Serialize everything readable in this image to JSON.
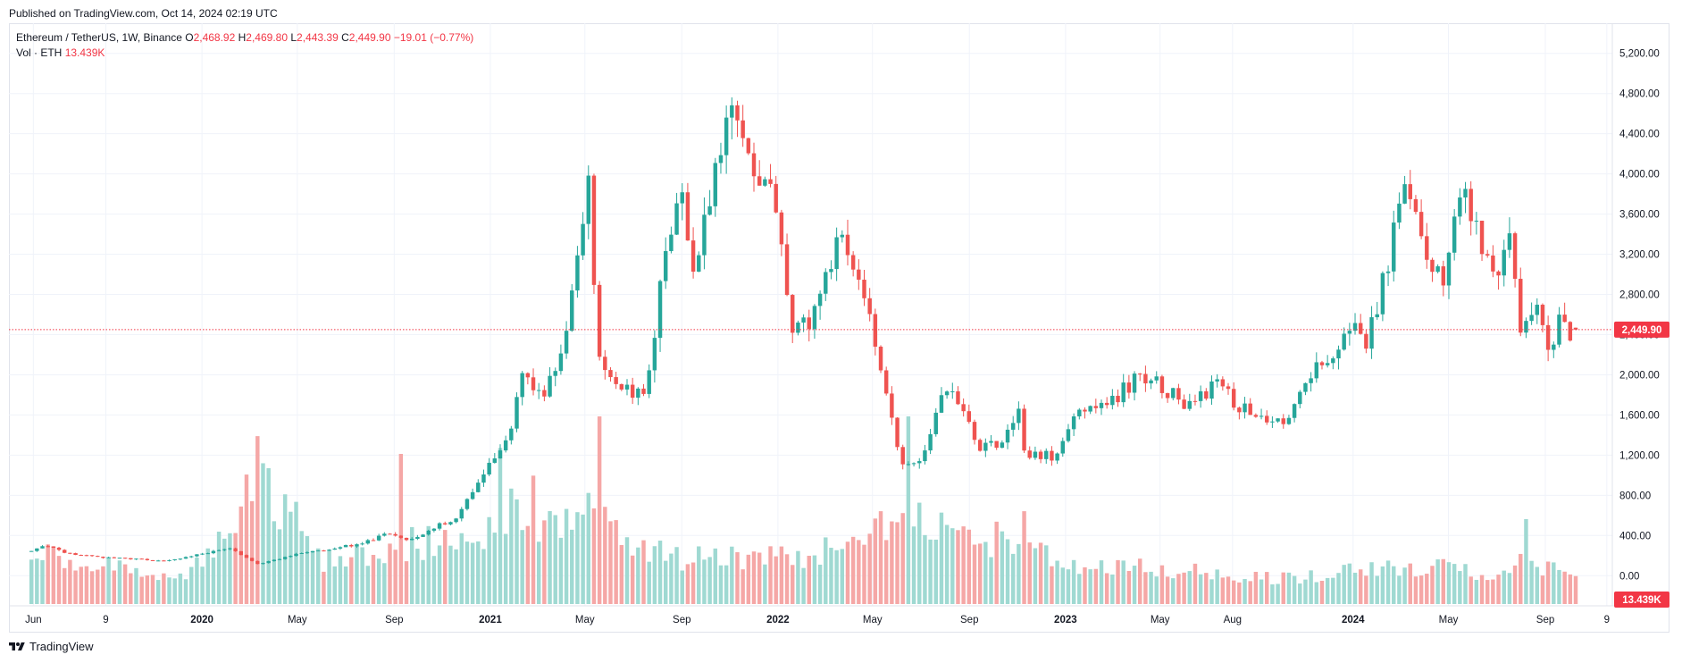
{
  "header": {
    "published": "Published on TradingView.com, Oct 14, 2024 02:19 UTC"
  },
  "legend": {
    "symbol": "Ethereum / TetherUS, 1W, Binance",
    "o_label": "O",
    "o_value": "2,468.92",
    "h_label": "H",
    "h_value": "2,469.80",
    "l_label": "L",
    "l_value": "2,443.39",
    "c_label": "C",
    "c_value": "2,449.90",
    "change": "−19.01 (−0.77%)",
    "vol_label": "Vol · ETH",
    "vol_value": "13.439K"
  },
  "footer": {
    "brand": "TradingView"
  },
  "colors": {
    "up": "#26a69a",
    "down": "#ef5350",
    "up_vol": "#9fd9d2",
    "down_vol": "#f5a7a6",
    "price_line": "#f23645"
  },
  "chart_data": {
    "type": "candlestick",
    "interval": "1W",
    "y_ticks": [
      "5,200.00",
      "4,800.00",
      "4,400.00",
      "4,000.00",
      "3,600.00",
      "3,200.00",
      "2,800.00",
      "2,400.00",
      "2,000.00",
      "1,600.00",
      "1,200.00",
      "800.00",
      "400.00",
      "0.00"
    ],
    "y_tick_values": [
      5200,
      4800,
      4400,
      4000,
      3600,
      3200,
      2800,
      2400,
      2000,
      1600,
      1200,
      800,
      400,
      0
    ],
    "ylim": [
      -300,
      5500
    ],
    "x_labels": [
      "Jun",
      "9",
      "2020",
      "May",
      "Sep",
      "2021",
      "May",
      "Sep",
      "2022",
      "May",
      "Sep",
      "2023",
      "May",
      "Aug",
      "2024",
      "May",
      "Sep",
      "9"
    ],
    "last_price": 2449.9,
    "last_price_label": "2,449.90",
    "last_volume_label": "13.439K",
    "anchors": [
      [
        "2019-05-27",
        240
      ],
      [
        "2019-06-24",
        300
      ],
      [
        "2019-07-15",
        230
      ],
      [
        "2019-09-02",
        180
      ],
      [
        "2019-11-25",
        150
      ],
      [
        "2020-02-10",
        270
      ],
      [
        "2020-03-16",
        115
      ],
      [
        "2020-05-04",
        210
      ],
      [
        "2020-07-27",
        320
      ],
      [
        "2020-08-31",
        430
      ],
      [
        "2020-09-21",
        350
      ],
      [
        "2020-11-23",
        580
      ],
      [
        "2021-01-04",
        1100
      ],
      [
        "2021-01-25",
        1300
      ],
      [
        "2021-02-15",
        1950
      ],
      [
        "2021-03-15",
        1800
      ],
      [
        "2021-04-12",
        2350
      ],
      [
        "2021-05-10",
        3900
      ],
      [
        "2021-05-24",
        2100
      ],
      [
        "2021-06-21",
        1900
      ],
      [
        "2021-07-19",
        1750
      ],
      [
        "2021-08-16",
        3200
      ],
      [
        "2021-09-06",
        3900
      ],
      [
        "2021-09-20",
        2950
      ],
      [
        "2021-10-25",
        4200
      ],
      [
        "2021-11-08",
        4700
      ],
      [
        "2021-12-06",
        4100
      ],
      [
        "2022-01-03",
        3700
      ],
      [
        "2022-01-24",
        2400
      ],
      [
        "2022-02-21",
        2600
      ],
      [
        "2022-03-28",
        3450
      ],
      [
        "2022-04-25",
        2800
      ],
      [
        "2022-05-16",
        2000
      ],
      [
        "2022-06-13",
        1100
      ],
      [
        "2022-07-04",
        1150
      ],
      [
        "2022-08-08",
        1900
      ],
      [
        "2022-09-19",
        1300
      ],
      [
        "2022-10-17",
        1300
      ],
      [
        "2022-11-07",
        1600
      ],
      [
        "2022-11-14",
        1200
      ],
      [
        "2022-12-26",
        1200
      ],
      [
        "2023-01-16",
        1600
      ],
      [
        "2023-02-20",
        1650
      ],
      [
        "2023-04-10",
        2000
      ],
      [
        "2023-06-12",
        1700
      ],
      [
        "2023-07-17",
        1900
      ],
      [
        "2023-08-21",
        1650
      ],
      [
        "2023-10-09",
        1550
      ],
      [
        "2023-11-06",
        1900
      ],
      [
        "2023-12-11",
        2250
      ],
      [
        "2024-01-08",
        2500
      ],
      [
        "2024-01-22",
        2250
      ],
      [
        "2024-02-19",
        3100
      ],
      [
        "2024-03-11",
        3900
      ],
      [
        "2024-04-01",
        3350
      ],
      [
        "2024-04-29",
        2950
      ],
      [
        "2024-05-20",
        3800
      ],
      [
        "2024-06-10",
        3500
      ],
      [
        "2024-07-01",
        3000
      ],
      [
        "2024-07-22",
        3300
      ],
      [
        "2024-08-05",
        2500
      ],
      [
        "2024-08-26",
        2600
      ],
      [
        "2024-09-09",
        2300
      ],
      [
        "2024-09-30",
        2600
      ],
      [
        "2024-10-07",
        2449.9
      ]
    ],
    "volume_ylim": [
      0,
      950000
    ],
    "volume_anchors": [
      [
        "2019-05-27",
        250000
      ],
      [
        "2019-12-01",
        130000
      ],
      [
        "2020-03-16",
        600000
      ],
      [
        "2020-06-01",
        230000
      ],
      [
        "2020-09-07",
        300000
      ],
      [
        "2020-12-14",
        330000
      ],
      [
        "2021-01-11",
        520000
      ],
      [
        "2021-03-01",
        330000
      ],
      [
        "2021-05-10",
        520000
      ],
      [
        "2021-07-05",
        270000
      ],
      [
        "2021-10-04",
        220000
      ],
      [
        "2022-01-24",
        250000
      ],
      [
        "2022-05-09",
        340000
      ],
      [
        "2022-06-13",
        430000
      ],
      [
        "2022-08-01",
        350000
      ],
      [
        "2022-11-07",
        310000
      ],
      [
        "2023-01-02",
        170000
      ],
      [
        "2023-03-13",
        210000
      ],
      [
        "2023-06-12",
        160000
      ],
      [
        "2023-08-21",
        130000
      ],
      [
        "2023-11-06",
        150000
      ],
      [
        "2024-03-11",
        200000
      ],
      [
        "2024-06-03",
        150000
      ],
      [
        "2024-08-05",
        230000
      ],
      [
        "2024-10-07",
        120000
      ]
    ],
    "volume_spikes": [
      [
        "2020-03-09",
        850000
      ],
      [
        "2020-09-07",
        760000
      ],
      [
        "2021-01-11",
        790000
      ],
      [
        "2021-05-17",
        1080000
      ],
      [
        "2022-06-13",
        1260000
      ],
      [
        "2022-11-07",
        470000
      ],
      [
        "2021-02-22",
        650000
      ],
      [
        "2022-05-09",
        470000
      ],
      [
        "2024-08-05",
        430000
      ]
    ]
  }
}
